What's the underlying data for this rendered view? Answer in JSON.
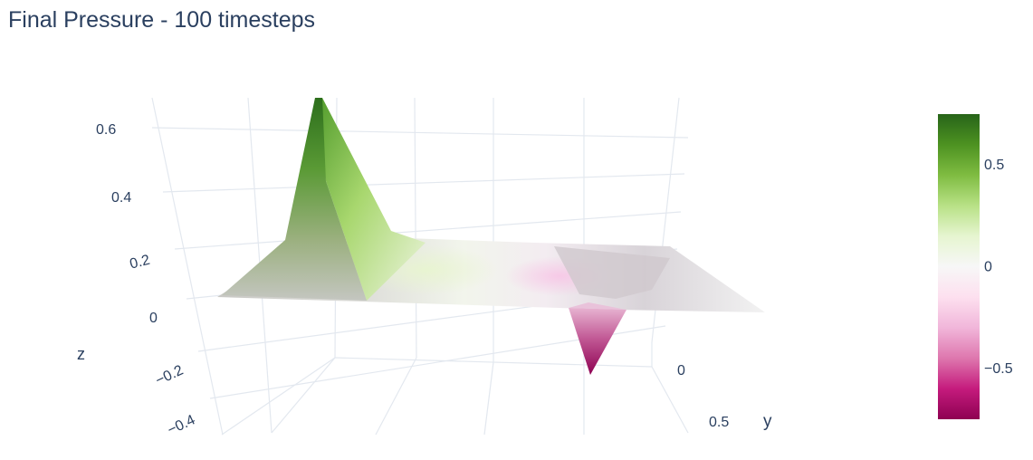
{
  "title": "Final Pressure - 100 timesteps",
  "chart_data": {
    "type": "surface",
    "title": "Final Pressure - 100 timesteps",
    "axes": {
      "x": {
        "title": ""
      },
      "y": {
        "title": "y",
        "visible_ticks": [
          "0",
          "0.5"
        ]
      },
      "z": {
        "title": "z",
        "ticks": [
          "0.6",
          "0.4",
          "0.2",
          "0",
          "−0.2",
          "−0.4"
        ]
      }
    },
    "surface_features": [
      {
        "feature": "peak",
        "z": 0.7
      },
      {
        "feature": "trough",
        "z": -0.4
      },
      {
        "feature": "baseline",
        "z": 0
      }
    ],
    "colorscale": {
      "name": "PiYG",
      "range": [
        -0.75,
        0.75
      ],
      "stops": [
        "#8e0152",
        "#c51b7d",
        "#de77ae",
        "#f1b6da",
        "#fde0ef",
        "#f7f7f7",
        "#e6f5d0",
        "#b8e186",
        "#7fbc41",
        "#4d9221",
        "#276419"
      ]
    },
    "colorbar": {
      "ticks": [
        "0.5",
        "0",
        "−0.5"
      ],
      "tick_values": [
        0.5,
        0,
        -0.5
      ]
    },
    "grid": true
  }
}
